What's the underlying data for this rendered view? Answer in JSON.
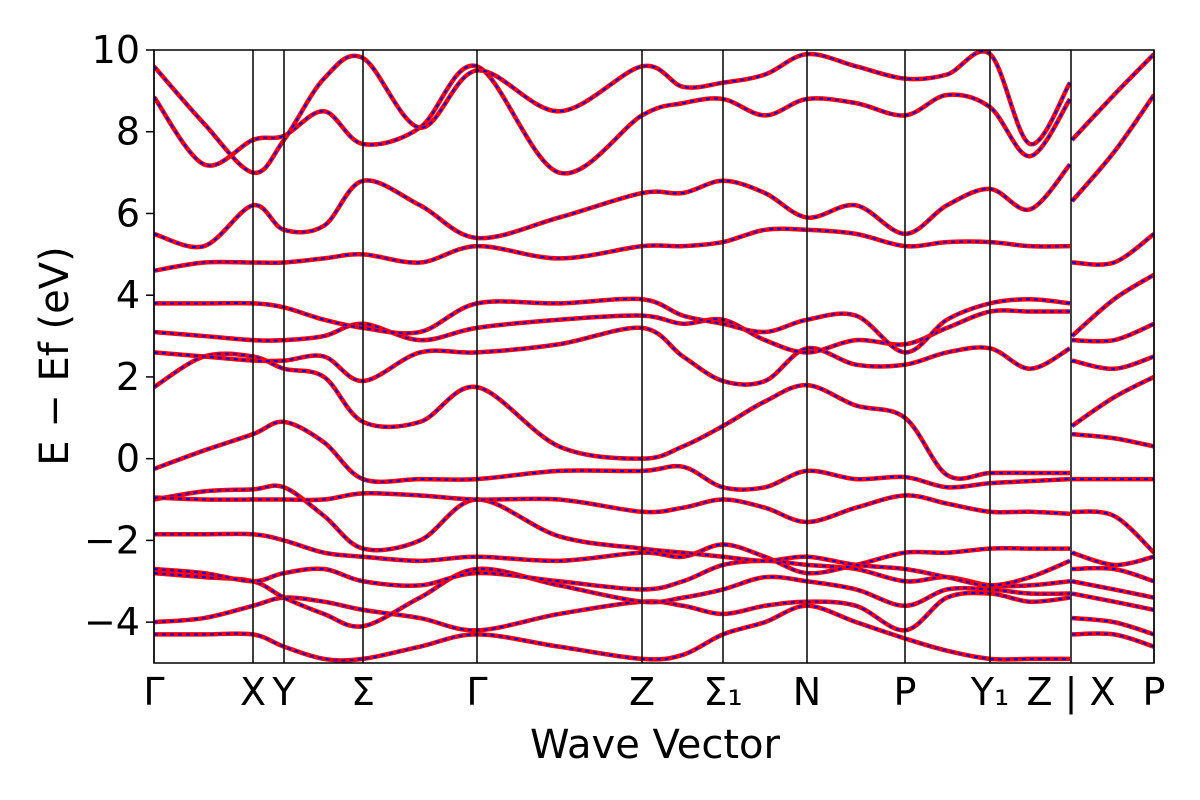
{
  "chart_data": {
    "type": "line",
    "xlabel": "Wave Vector",
    "ylabel": "E − Ef (eV)",
    "xlim": [
      0,
      10
    ],
    "ylim": [
      -5,
      10
    ],
    "yticks": [
      {
        "value": -4,
        "label": "−4"
      },
      {
        "value": -2,
        "label": "−2"
      },
      0,
      2,
      4,
      6,
      8,
      10
    ],
    "xticks": [
      {
        "value": 0,
        "label": "Γ"
      },
      {
        "value": 0.99,
        "label": "X"
      },
      {
        "value": 1.3,
        "label": "Y"
      },
      {
        "value": 2.09,
        "label": "Σ"
      },
      {
        "value": 3.23,
        "label": "Γ"
      },
      {
        "value": 4.88,
        "label": "Z"
      },
      {
        "value": 5.69,
        "label": "Σ₁"
      },
      {
        "value": 6.53,
        "label": "N"
      },
      {
        "value": 7.51,
        "label": "P"
      },
      {
        "value": 8.36,
        "label": "Y₁"
      },
      {
        "value": 9.17,
        "label": "Z | X"
      },
      {
        "value": 10,
        "label": "P"
      }
    ],
    "line_color": "#ff0000",
    "dash_color": "#0000ff",
    "x": [
      0,
      0.5,
      0.99,
      1.3,
      1.7,
      2.09,
      2.66,
      3.23,
      4.05,
      4.88,
      5.29,
      5.69,
      6.11,
      6.53,
      7.02,
      7.51,
      7.93,
      8.36,
      8.76,
      9.16,
      9.17,
      9.18,
      9.6,
      10
    ],
    "series": [
      {
        "values": [
          -4.3,
          -4.3,
          -4.3,
          -4.6,
          -4.9,
          -4.9,
          -4.6,
          -4.3,
          -4.6,
          -4.9,
          -4.8,
          -4.3,
          -4.0,
          -3.6,
          -4.0,
          -4.4,
          -4.7,
          -4.9,
          -4.9,
          -4.9,
          null,
          -4.3,
          -4.3,
          -4.6
        ]
      },
      {
        "values": [
          -4.0,
          -3.9,
          -3.6,
          -3.4,
          -3.5,
          -3.7,
          -3.9,
          -4.2,
          -3.8,
          -3.5,
          -3.6,
          -3.8,
          -3.6,
          -3.5,
          -3.6,
          -4.2,
          -3.4,
          -3.3,
          -3.5,
          -3.4,
          null,
          -3.9,
          -4.0,
          -4.3
        ]
      },
      {
        "values": [
          -2.8,
          -2.9,
          -3.0,
          -3.4,
          -3.8,
          -4.1,
          -3.4,
          -2.7,
          -3.1,
          -3.5,
          -3.4,
          -3.2,
          -2.9,
          -3.0,
          -3.2,
          -3.6,
          -3.2,
          -3.2,
          -3.3,
          -3.3,
          null,
          -3.3,
          -3.5,
          -3.7
        ]
      },
      {
        "values": [
          -2.7,
          -2.8,
          -3.0,
          -2.8,
          -2.7,
          -3.0,
          -3.1,
          -2.8,
          -3.0,
          -3.2,
          -3.0,
          -2.6,
          -2.5,
          -2.6,
          -2.7,
          -3.0,
          -2.9,
          -3.1,
          -3.1,
          -3.0,
          null,
          -3.0,
          -3.2,
          -3.4
        ]
      },
      {
        "values": [
          -1.85,
          -1.85,
          -1.85,
          -2.0,
          -2.3,
          -2.4,
          -2.5,
          -2.4,
          -2.5,
          -2.3,
          -2.4,
          -2.1,
          -2.4,
          -2.8,
          -2.6,
          -2.3,
          -2.3,
          -2.2,
          -2.2,
          -2.2,
          null,
          -2.7,
          -2.7,
          -3.0
        ]
      },
      {
        "values": [
          -1.0,
          -0.8,
          -0.75,
          -0.7,
          -1.4,
          -2.2,
          -2.0,
          -1.0,
          -1.9,
          -2.2,
          -2.3,
          -2.4,
          -2.5,
          -2.4,
          -2.6,
          -2.7,
          -2.9,
          -3.1,
          -2.9,
          -2.5,
          null,
          -2.3,
          -2.6,
          -2.4
        ]
      },
      {
        "values": [
          -0.95,
          -1.0,
          -1.0,
          -1.0,
          -1.0,
          -0.85,
          -0.9,
          -1.0,
          -1.0,
          -1.3,
          -1.2,
          -1.0,
          -1.2,
          -1.55,
          -1.2,
          -0.9,
          -1.1,
          -1.3,
          -1.3,
          -1.35,
          null,
          -1.3,
          -1.4,
          -2.3
        ]
      },
      {
        "values": [
          -0.25,
          0.2,
          0.6,
          0.9,
          0.4,
          -0.5,
          -0.5,
          -0.5,
          -0.3,
          -0.3,
          -0.2,
          -0.7,
          -0.7,
          -0.3,
          -0.5,
          -0.45,
          -0.7,
          -0.6,
          -0.55,
          -0.5,
          null,
          -0.5,
          -0.5,
          -0.5
        ]
      },
      {
        "values": [
          1.75,
          2.5,
          2.5,
          2.2,
          2.0,
          0.9,
          0.9,
          1.75,
          0.3,
          0.0,
          0.3,
          0.8,
          1.4,
          1.8,
          1.3,
          1.0,
          -0.4,
          -0.35,
          -0.35,
          -0.35,
          null,
          0.6,
          0.5,
          0.3
        ]
      },
      {
        "values": [
          2.6,
          2.5,
          2.4,
          2.4,
          2.5,
          1.9,
          2.6,
          2.6,
          2.8,
          3.2,
          2.5,
          1.9,
          1.9,
          2.7,
          2.3,
          2.3,
          2.6,
          2.7,
          2.2,
          2.7,
          null,
          0.8,
          1.5,
          2.0
        ]
      },
      {
        "values": [
          3.1,
          3.0,
          2.9,
          2.9,
          3.0,
          3.3,
          2.9,
          3.2,
          3.4,
          3.5,
          3.3,
          3.4,
          2.9,
          2.6,
          2.9,
          2.8,
          3.2,
          3.6,
          3.6,
          3.6,
          null,
          2.4,
          2.2,
          2.5
        ]
      },
      {
        "values": [
          3.8,
          3.8,
          3.8,
          3.7,
          3.4,
          3.2,
          3.1,
          3.8,
          3.8,
          3.9,
          3.5,
          3.3,
          3.1,
          3.4,
          3.5,
          2.6,
          3.4,
          3.8,
          3.9,
          3.8,
          null,
          2.9,
          2.9,
          3.3
        ]
      },
      {
        "values": [
          4.6,
          4.8,
          4.8,
          4.8,
          4.9,
          5.0,
          4.8,
          5.2,
          4.9,
          5.2,
          5.2,
          5.3,
          5.6,
          5.6,
          5.5,
          5.2,
          5.3,
          5.3,
          5.2,
          5.2,
          null,
          3.0,
          3.9,
          4.5
        ]
      },
      {
        "values": [
          5.5,
          5.2,
          6.2,
          5.6,
          5.7,
          6.8,
          6.2,
          5.4,
          5.9,
          6.5,
          6.5,
          6.8,
          6.5,
          5.9,
          6.2,
          5.5,
          6.2,
          6.6,
          6.1,
          7.2,
          null,
          4.8,
          4.8,
          5.5
        ]
      },
      {
        "values": [
          8.85,
          7.2,
          7.8,
          7.9,
          8.5,
          7.7,
          8.1,
          9.6,
          7.0,
          8.4,
          8.7,
          8.8,
          8.4,
          8.8,
          8.7,
          8.4,
          8.9,
          8.6,
          7.4,
          8.8,
          null,
          6.3,
          7.5,
          8.9
        ]
      },
      {
        "values": [
          9.6,
          8.2,
          7.0,
          7.8,
          9.3,
          9.8,
          8.1,
          9.5,
          8.5,
          9.6,
          9.1,
          9.2,
          9.4,
          9.9,
          9.6,
          9.3,
          9.4,
          9.9,
          7.7,
          9.2,
          null,
          7.8,
          8.9,
          9.9
        ]
      }
    ]
  }
}
